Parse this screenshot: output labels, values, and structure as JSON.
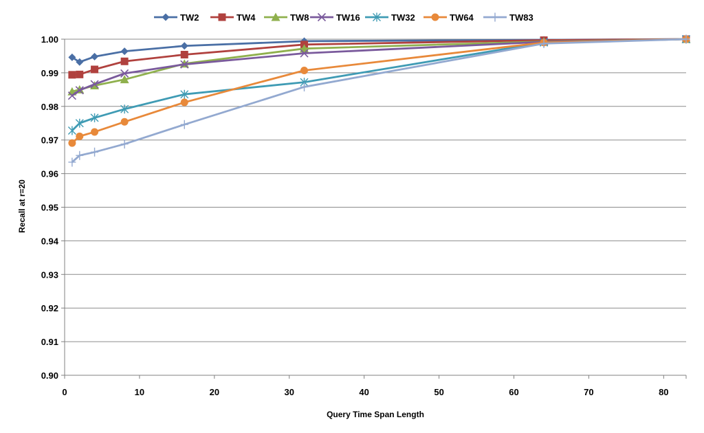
{
  "chart_data": {
    "type": "line",
    "title": "",
    "xlabel": "Query Time Span Length",
    "ylabel": "Recall at r=20",
    "xlim": [
      0,
      83
    ],
    "ylim": [
      0.9,
      1.0
    ],
    "xticks": [
      0,
      10,
      20,
      30,
      40,
      50,
      60,
      70,
      80
    ],
    "yticks": [
      "0.90",
      "0.91",
      "0.92",
      "0.93",
      "0.94",
      "0.95",
      "0.96",
      "0.97",
      "0.98",
      "0.99",
      "1.00"
    ],
    "grid": "horizontal",
    "legend_position": "top",
    "x": [
      1,
      2,
      4,
      8,
      16,
      32,
      64,
      83
    ],
    "series": [
      {
        "name": "TW2",
        "color": "#4a6fa5",
        "marker": "diamond",
        "values": [
          0.9946,
          0.9932,
          0.9948,
          0.9964,
          0.998,
          0.9994,
          0.9998,
          1.0
        ]
      },
      {
        "name": "TW4",
        "color": "#b0413e",
        "marker": "square",
        "values": [
          0.9894,
          0.9895,
          0.991,
          0.9934,
          0.9954,
          0.9984,
          0.9997,
          1.0
        ]
      },
      {
        "name": "TW8",
        "color": "#8fb04d",
        "marker": "triangle",
        "values": [
          0.9844,
          0.985,
          0.9862,
          0.988,
          0.9927,
          0.9972,
          0.9993,
          1.0
        ]
      },
      {
        "name": "TW16",
        "color": "#7a5a9c",
        "marker": "x",
        "values": [
          0.9832,
          0.9848,
          0.9866,
          0.9898,
          0.9925,
          0.9958,
          0.9992,
          1.0
        ]
      },
      {
        "name": "TW32",
        "color": "#3f9bb4",
        "marker": "star",
        "values": [
          0.9728,
          0.975,
          0.9766,
          0.9792,
          0.9836,
          0.9872,
          0.999,
          1.0
        ]
      },
      {
        "name": "TW64",
        "color": "#e8893a",
        "marker": "circle",
        "values": [
          0.9691,
          0.9711,
          0.9724,
          0.9754,
          0.9812,
          0.9907,
          0.999,
          1.0
        ]
      },
      {
        "name": "TW83",
        "color": "#93a9d0",
        "marker": "plus",
        "values": [
          0.9634,
          0.9654,
          0.9664,
          0.9688,
          0.9746,
          0.9858,
          0.9987,
          1.0
        ]
      }
    ]
  }
}
